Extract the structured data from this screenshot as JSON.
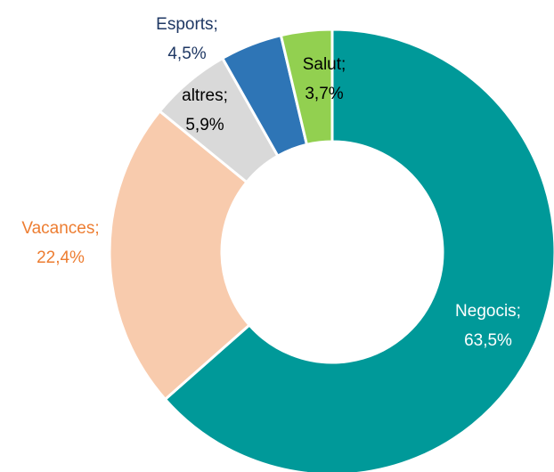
{
  "chart_data": {
    "type": "donut",
    "categories": [
      "Negocis;",
      "Vacances;",
      "altres;",
      "Esports;",
      "Salut;"
    ],
    "values": [
      63.5,
      22.4,
      5.9,
      4.5,
      3.7
    ],
    "value_labels": [
      "63,5%",
      "22,4%",
      "5,9%",
      "4,5%",
      "3,7%"
    ],
    "colors": [
      "#009999",
      "#f8cbad",
      "#d9d9d9",
      "#2e75b6",
      "#92d050"
    ],
    "label_colors": [
      "#ffffff",
      "#ed7d31",
      "#000000",
      "#1f3864",
      "#000000"
    ]
  }
}
